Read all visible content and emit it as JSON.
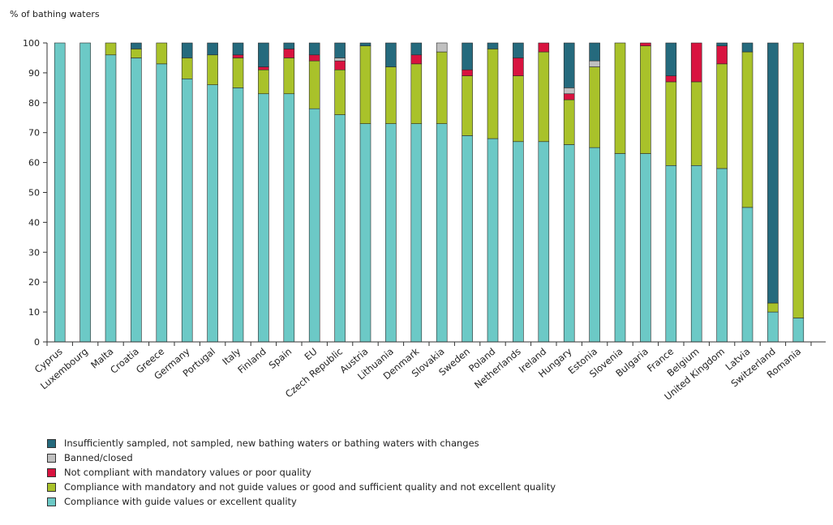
{
  "chart_data": {
    "type": "bar",
    "stacked": true,
    "title": "",
    "ylabel": "% of bathing waters",
    "xlabel": "",
    "ylim": [
      0,
      100
    ],
    "yticks": [
      0,
      10,
      20,
      30,
      40,
      50,
      60,
      70,
      80,
      90,
      100
    ],
    "categories": [
      "Cyprus",
      "Luxembourg",
      "Malta",
      "Croatia",
      "Greece",
      "Germany",
      "Portugal",
      "Italy",
      "Finland",
      "Spain",
      "EU",
      "Czech Republic",
      "Austria",
      "Lithuania",
      "Denmark",
      "Slovakia",
      "Sweden",
      "Poland",
      "Netherlands",
      "Ireland",
      "Hungary",
      "Estonia",
      "Slovenia",
      "Bulgaria",
      "France",
      "Belgium",
      "United Kingdom",
      "Latvia",
      "Switzerland",
      "Romania"
    ],
    "legend_position": "bottom",
    "series": [
      {
        "name": "Compliance with guide values or excellent quality",
        "color": "#6cc9c6",
        "values": [
          100,
          100,
          96,
          95,
          93,
          88,
          86,
          85,
          83,
          83,
          78,
          76,
          73,
          73,
          73,
          73,
          69,
          68,
          67,
          67,
          66,
          65,
          63,
          63,
          59,
          59,
          58,
          45,
          10,
          8
        ]
      },
      {
        "name": "Compliance with mandatory and not guide values or good and sufficient quality and not excellent quality",
        "color": "#a9c22a",
        "values": [
          0,
          0,
          4,
          3,
          7,
          7,
          10,
          10,
          8,
          12,
          16,
          15,
          26,
          19,
          20,
          24,
          20,
          30,
          22,
          30,
          15,
          27,
          37,
          36,
          28,
          28,
          35,
          52,
          3,
          92
        ]
      },
      {
        "name": "Not compliant with mandatory values or poor quality",
        "color": "#d8133f",
        "values": [
          0,
          0,
          0,
          0,
          0,
          0,
          0,
          1,
          1,
          3,
          2,
          3,
          0,
          0,
          3,
          0,
          2,
          0,
          6,
          3,
          2,
          0,
          0,
          1,
          2,
          13,
          6,
          0,
          0,
          0
        ]
      },
      {
        "name": "Banned/closed",
        "color": "#c0c0c0",
        "values": [
          0,
          0,
          0,
          0,
          0,
          0,
          0,
          0,
          0,
          0,
          0,
          1,
          0,
          0,
          0,
          3,
          0,
          0,
          0,
          0,
          2,
          2,
          0,
          0,
          0,
          0,
          0,
          0,
          0,
          0
        ]
      },
      {
        "name": "Insufficiently sampled, not sampled, new bathing waters or bathing waters with changes",
        "color": "#256a7d",
        "values": [
          0,
          0,
          0,
          2,
          0,
          5,
          4,
          4,
          8,
          2,
          4,
          5,
          1,
          8,
          4,
          0,
          9,
          2,
          5,
          0,
          15,
          6,
          0,
          0,
          11,
          0,
          1,
          3,
          87,
          0
        ]
      }
    ],
    "legend_order": [
      4,
      3,
      2,
      1,
      0
    ]
  }
}
